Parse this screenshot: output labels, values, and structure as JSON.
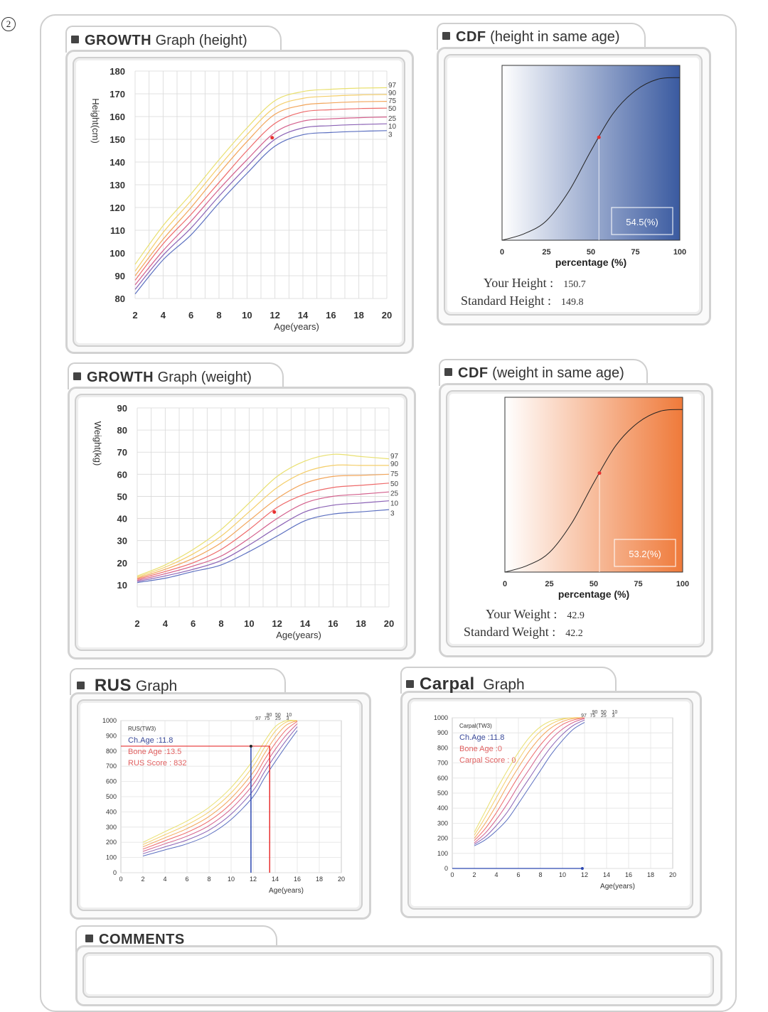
{
  "page_mark": "2",
  "height_growth": {
    "title_bold": "GROWTH",
    "title_rest": "Graph (height)",
    "ylabel": "Height(cm)",
    "xlabel": "Age(years)",
    "y_ticks": [
      "180",
      "170",
      "160",
      "150",
      "140",
      "130",
      "120",
      "110",
      "100",
      "90",
      "80"
    ],
    "x_ticks": [
      "2",
      "4",
      "6",
      "8",
      "10",
      "12",
      "14",
      "16",
      "18",
      "20"
    ],
    "percentiles": [
      "97",
      "90",
      "75",
      "50",
      "25",
      "10",
      "3"
    ]
  },
  "height_cdf": {
    "title_bold": "CDF",
    "title_rest": "(height in same age)",
    "xlabel": "percentage (%)",
    "x_ticks": [
      "0",
      "25",
      "50",
      "75",
      "100"
    ],
    "value_box": "54.5(%)",
    "your_label": "Your Height :",
    "your_value": "150.7",
    "standard_label": "Standard Height :",
    "standard_value": "149.8"
  },
  "weight_growth": {
    "title_bold": "GROWTH",
    "title_rest": "Graph (weight)",
    "ylabel": "Weight(kg)",
    "xlabel": "Age(years)",
    "y_ticks": [
      "90",
      "80",
      "70",
      "60",
      "50",
      "40",
      "30",
      "20",
      "10"
    ],
    "x_ticks": [
      "2",
      "4",
      "6",
      "8",
      "10",
      "12",
      "14",
      "16",
      "18",
      "20"
    ],
    "percentiles": [
      "97",
      "90",
      "75",
      "50",
      "25",
      "10",
      "3"
    ]
  },
  "weight_cdf": {
    "title_bold": "CDF",
    "title_rest": "(weight in same age)",
    "xlabel": "percentage (%)",
    "x_ticks": [
      "0",
      "25",
      "50",
      "75",
      "100"
    ],
    "value_box": "53.2(%)",
    "your_label": "Your Weight :",
    "your_value": "42.9",
    "standard_label": "Standard Weight :",
    "standard_value": "42.2"
  },
  "rus": {
    "title_bold": "RUS",
    "title_rest": "Graph",
    "chart_title": "RUS(TW3)",
    "ch_age": "Ch.Age :11.8",
    "bone_age": "Bone Age :13.5",
    "score": "RUS Score : 832",
    "xlabel": "Age(years)",
    "y_ticks": [
      "1000",
      "900",
      "800",
      "700",
      "600",
      "500",
      "400",
      "300",
      "200",
      "100",
      "0"
    ],
    "x_ticks": [
      "0",
      "2",
      "4",
      "6",
      "8",
      "10",
      "12",
      "14",
      "16",
      "18",
      "20"
    ],
    "percentiles": [
      "97",
      "90",
      "75",
      "50",
      "25",
      "10",
      "3"
    ]
  },
  "carpal": {
    "title_bold": "Carpal",
    "title_rest": "Graph",
    "chart_title": "Carpal(TW3)",
    "ch_age": "Ch.Age :11.8",
    "bone_age": "Bone Age :0",
    "score": "Carpal Score : 0",
    "xlabel": "Age(years)",
    "y_ticks": [
      "1000",
      "900",
      "800",
      "700",
      "600",
      "500",
      "400",
      "300",
      "200",
      "100",
      "0"
    ],
    "x_ticks": [
      "0",
      "2",
      "4",
      "6",
      "8",
      "10",
      "12",
      "14",
      "16",
      "18",
      "20"
    ],
    "percentiles": [
      "97",
      "90",
      "75",
      "50",
      "25",
      "10",
      "3"
    ]
  },
  "comments": {
    "title": "COMMENTS"
  },
  "colors": {
    "percentile_lines": [
      "#e9e070",
      "#f4ce6a",
      "#f2a55a",
      "#ee6a6a",
      "#d35f8c",
      "#8b62b5",
      "#5b6fc0"
    ],
    "height_cdf_gradient": [
      "#ffffff",
      "#3a5aa0"
    ],
    "weight_cdf_gradient": [
      "#ffffff",
      "#ef7a3a"
    ],
    "marker": "#e83030",
    "bone_age_line": "#e83030",
    "ch_age_line": "#2c48b0"
  },
  "chart_data": [
    {
      "type": "line",
      "name": "GROWTH Graph (height)",
      "xlabel": "Age(years)",
      "ylabel": "Height(cm)",
      "xlim": [
        2,
        20
      ],
      "ylim": [
        80,
        180
      ],
      "grid": true,
      "x": [
        2,
        4,
        6,
        8,
        10,
        12,
        14,
        16,
        18,
        20
      ],
      "series": [
        {
          "name": "97",
          "values": [
            95,
            112,
            126,
            141,
            155,
            167,
            171,
            172,
            172.5,
            172.7
          ]
        },
        {
          "name": "90",
          "values": [
            92,
            109,
            123,
            138,
            152,
            164,
            168,
            169,
            169.5,
            169.7
          ]
        },
        {
          "name": "75",
          "values": [
            90,
            106,
            120,
            135,
            149,
            161,
            165,
            166,
            166.5,
            166.7
          ]
        },
        {
          "name": "50",
          "values": [
            88,
            104,
            117,
            131,
            145,
            157,
            162,
            163,
            163.5,
            163.7
          ]
        },
        {
          "name": "25",
          "values": [
            86,
            101,
            114,
            128,
            141,
            153,
            158,
            159,
            159.5,
            159.8
          ]
        },
        {
          "name": "10",
          "values": [
            84,
            99,
            111,
            125,
            138,
            150,
            155,
            156,
            156.5,
            156.8
          ]
        },
        {
          "name": "3",
          "values": [
            82,
            97,
            108,
            122,
            135,
            147,
            152,
            153,
            153.5,
            153.8
          ]
        }
      ],
      "points": [
        {
          "x": 11.8,
          "y": 150.7
        }
      ]
    },
    {
      "type": "line",
      "name": "CDF (height in same age)",
      "xlabel": "percentage (%)",
      "xlim": [
        0,
        100
      ],
      "x": [
        0,
        12.5,
        25,
        37.5,
        50,
        62.5,
        75,
        87.5,
        100
      ],
      "values": [
        0,
        0.04,
        0.12,
        0.3,
        0.55,
        0.78,
        0.92,
        0.99,
        1.0
      ],
      "marker": {
        "x": 54.5
      }
    },
    {
      "type": "line",
      "name": "GROWTH Graph (weight)",
      "xlabel": "Age(years)",
      "ylabel": "Weight(kg)",
      "xlim": [
        2,
        20
      ],
      "ylim": [
        0,
        90
      ],
      "grid": true,
      "x": [
        2,
        4,
        6,
        8,
        10,
        12,
        14,
        16,
        18,
        20
      ],
      "series": [
        {
          "name": "97",
          "values": [
            14,
            19,
            26,
            35,
            47,
            59,
            66,
            69,
            68,
            67
          ]
        },
        {
          "name": "90",
          "values": [
            13.5,
            18,
            24,
            32,
            43,
            54,
            61,
            64,
            64,
            64
          ]
        },
        {
          "name": "75",
          "values": [
            13,
            17,
            22,
            29,
            39,
            49,
            56,
            59,
            59.5,
            60
          ]
        },
        {
          "name": "50",
          "values": [
            12.5,
            16,
            20,
            26,
            35,
            45,
            51,
            54,
            55,
            56
          ]
        },
        {
          "name": "25",
          "values": [
            12,
            15,
            18.5,
            23,
            31,
            40,
            47,
            50,
            51,
            52
          ]
        },
        {
          "name": "10",
          "values": [
            11.5,
            14,
            17,
            21,
            28,
            36,
            43,
            46,
            47,
            48
          ]
        },
        {
          "name": "3",
          "values": [
            11,
            13,
            16,
            19,
            25,
            32,
            39,
            42,
            43,
            44
          ]
        }
      ],
      "points": [
        {
          "x": 11.8,
          "y": 42.9
        }
      ]
    },
    {
      "type": "line",
      "name": "CDF (weight in same age)",
      "xlabel": "percentage (%)",
      "xlim": [
        0,
        100
      ],
      "x": [
        0,
        12.5,
        25,
        37.5,
        50,
        62.5,
        75,
        87.5,
        100
      ],
      "values": [
        0,
        0.04,
        0.12,
        0.3,
        0.55,
        0.78,
        0.92,
        0.99,
        1.0
      ],
      "marker": {
        "x": 53.2
      }
    },
    {
      "type": "line",
      "name": "RUS(TW3)",
      "xlabel": "Age(years)",
      "xlim": [
        0,
        20
      ],
      "ylim": [
        0,
        1000
      ],
      "grid": true,
      "x": [
        2,
        4,
        6,
        8,
        10,
        12,
        13,
        14,
        15,
        16
      ],
      "series": [
        {
          "name": "97",
          "values": [
            200,
            270,
            340,
            430,
            560,
            740,
            860,
            960,
            1000,
            1000
          ]
        },
        {
          "name": "90",
          "values": [
            185,
            250,
            315,
            400,
            525,
            700,
            820,
            930,
            990,
            1000
          ]
        },
        {
          "name": "75",
          "values": [
            170,
            230,
            290,
            370,
            490,
            660,
            780,
            890,
            970,
            1000
          ]
        },
        {
          "name": "50",
          "values": [
            155,
            210,
            265,
            340,
            455,
            620,
            740,
            850,
            940,
            995
          ]
        },
        {
          "name": "25",
          "values": [
            140,
            190,
            240,
            310,
            420,
            580,
            700,
            810,
            905,
            980
          ]
        },
        {
          "name": "10",
          "values": [
            125,
            170,
            215,
            280,
            385,
            540,
            660,
            770,
            870,
            960
          ]
        },
        {
          "name": "3",
          "values": [
            110,
            150,
            190,
            250,
            350,
            500,
            620,
            730,
            835,
            935
          ]
        }
      ],
      "markers": {
        "ch_age": 11.8,
        "bone_age": 13.5,
        "score": 832
      }
    },
    {
      "type": "line",
      "name": "Carpal(TW3)",
      "xlabel": "Age(years)",
      "xlim": [
        0,
        20
      ],
      "ylim": [
        0,
        1000
      ],
      "grid": true,
      "x": [
        2,
        3,
        4,
        5,
        6,
        7,
        8,
        9,
        10,
        11,
        12
      ],
      "series": [
        {
          "name": "97",
          "values": [
            240,
            380,
            520,
            650,
            770,
            870,
            940,
            980,
            995,
            1000,
            1000
          ]
        },
        {
          "name": "90",
          "values": [
            220,
            340,
            470,
            600,
            720,
            830,
            910,
            960,
            990,
            1000,
            1000
          ]
        },
        {
          "name": "75",
          "values": [
            200,
            300,
            420,
            550,
            670,
            780,
            870,
            935,
            975,
            995,
            1000
          ]
        },
        {
          "name": "50",
          "values": [
            185,
            265,
            370,
            490,
            610,
            720,
            820,
            900,
            955,
            985,
            1000
          ]
        },
        {
          "name": "25",
          "values": [
            170,
            235,
            325,
            430,
            550,
            660,
            770,
            860,
            925,
            970,
            995
          ]
        },
        {
          "name": "10",
          "values": [
            160,
            210,
            285,
            375,
            490,
            600,
            710,
            810,
            890,
            950,
            985
          ]
        },
        {
          "name": "3",
          "values": [
            150,
            190,
            250,
            325,
            430,
            540,
            650,
            760,
            850,
            925,
            970
          ]
        }
      ],
      "points": [
        {
          "x": 11.8,
          "y": 0
        }
      ]
    }
  ]
}
